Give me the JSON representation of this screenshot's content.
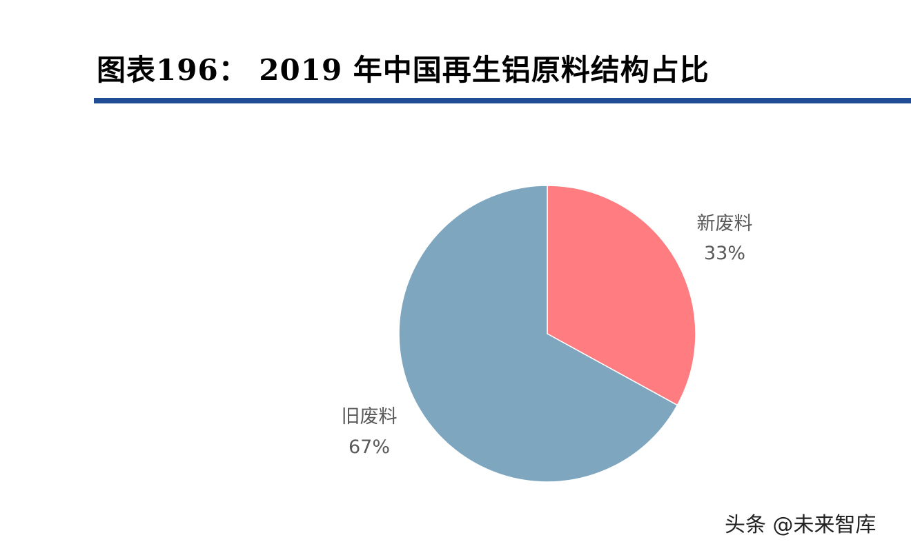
{
  "figure": {
    "title": "图表196：  2019 年中国再生铝原料结构占比"
  },
  "colors": {
    "title_rule": "#1f4e96",
    "slice_new": "#ff7c80",
    "slice_old": "#7fa6bf",
    "label_text": "#595959"
  },
  "chart_data": {
    "type": "pie",
    "title": "",
    "slices": [
      {
        "name": "新废料",
        "value": 33,
        "label": "33%",
        "color": "#ff7c80"
      },
      {
        "name": "旧废料",
        "value": 67,
        "label": "67%",
        "color": "#7fa6bf"
      }
    ],
    "start_angle": "12 o'clock",
    "direction": "clockwise",
    "legend": "none"
  },
  "watermark": {
    "text": "头条 @未来智库"
  }
}
